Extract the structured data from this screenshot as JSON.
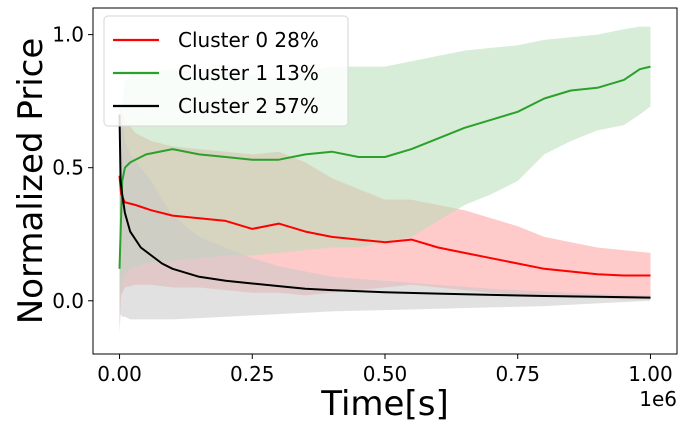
{
  "chart_data": {
    "type": "line",
    "xlabel": "Time[s]",
    "ylabel": "Normalized Price",
    "x_multiplier_label": "1e6",
    "xlim": [
      -0.05,
      1.05
    ],
    "ylim": [
      -0.2,
      1.1
    ],
    "x_ticks": [
      0.0,
      0.25,
      0.5,
      0.75,
      1.0
    ],
    "x_tick_labels": [
      "0.00",
      "0.25",
      "0.50",
      "0.75",
      "1.00"
    ],
    "y_ticks": [
      0.0,
      0.5,
      1.0
    ],
    "y_tick_labels": [
      "0.0",
      "0.5",
      "1.0"
    ],
    "legend_position": "upper-left",
    "series": [
      {
        "name": "Cluster 0 28%",
        "color": "#ff0000",
        "band_color": "#ff9e9e",
        "x": [
          0.0,
          0.003,
          0.01,
          0.03,
          0.06,
          0.1,
          0.15,
          0.2,
          0.25,
          0.3,
          0.35,
          0.4,
          0.45,
          0.5,
          0.55,
          0.6,
          0.65,
          0.7,
          0.75,
          0.8,
          0.85,
          0.9,
          0.95,
          1.0
        ],
        "mean": [
          0.47,
          0.4,
          0.37,
          0.36,
          0.34,
          0.32,
          0.31,
          0.3,
          0.27,
          0.29,
          0.26,
          0.24,
          0.23,
          0.22,
          0.23,
          0.2,
          0.18,
          0.16,
          0.14,
          0.12,
          0.11,
          0.1,
          0.095,
          0.095
        ],
        "upper": [
          0.75,
          0.72,
          0.68,
          0.63,
          0.6,
          0.58,
          0.57,
          0.56,
          0.55,
          0.56,
          0.52,
          0.46,
          0.42,
          0.38,
          0.38,
          0.36,
          0.34,
          0.31,
          0.28,
          0.24,
          0.22,
          0.2,
          0.19,
          0.18
        ],
        "lower": [
          -0.1,
          0.02,
          0.05,
          0.06,
          0.06,
          0.05,
          0.05,
          0.04,
          0.03,
          0.03,
          0.02,
          0.03,
          0.04,
          0.05,
          0.06,
          0.05,
          0.04,
          0.03,
          0.02,
          0.02,
          0.01,
          0.01,
          0.005,
          0.005
        ]
      },
      {
        "name": "Cluster 1 13%",
        "color": "#2ca02c",
        "band_color": "#b6dfb6",
        "x": [
          0.0,
          0.005,
          0.01,
          0.02,
          0.05,
          0.1,
          0.15,
          0.2,
          0.25,
          0.3,
          0.35,
          0.4,
          0.45,
          0.5,
          0.55,
          0.6,
          0.65,
          0.7,
          0.75,
          0.8,
          0.85,
          0.9,
          0.95,
          0.98,
          1.0
        ],
        "mean": [
          0.12,
          0.45,
          0.5,
          0.52,
          0.55,
          0.57,
          0.55,
          0.54,
          0.53,
          0.53,
          0.55,
          0.56,
          0.54,
          0.54,
          0.57,
          0.61,
          0.65,
          0.68,
          0.71,
          0.76,
          0.79,
          0.8,
          0.83,
          0.87,
          0.88
        ],
        "upper": [
          0.2,
          0.75,
          0.82,
          0.85,
          0.86,
          0.87,
          0.86,
          0.86,
          0.85,
          0.84,
          0.86,
          0.88,
          0.88,
          0.88,
          0.9,
          0.92,
          0.94,
          0.95,
          0.96,
          0.98,
          0.99,
          1.0,
          1.02,
          1.03,
          1.03
        ],
        "lower": [
          0.0,
          0.06,
          0.1,
          0.12,
          0.14,
          0.15,
          0.16,
          0.17,
          0.17,
          0.18,
          0.19,
          0.2,
          0.2,
          0.22,
          0.24,
          0.3,
          0.36,
          0.4,
          0.45,
          0.55,
          0.6,
          0.64,
          0.66,
          0.7,
          0.73
        ]
      },
      {
        "name": "Cluster 2 57%",
        "color": "#000000",
        "band_color": "#c9c9c9",
        "x": [
          0.0,
          0.002,
          0.005,
          0.01,
          0.02,
          0.04,
          0.06,
          0.08,
          0.1,
          0.15,
          0.2,
          0.25,
          0.3,
          0.35,
          0.4,
          0.5,
          0.6,
          0.7,
          0.8,
          0.9,
          1.0
        ],
        "mean": [
          0.7,
          0.45,
          0.4,
          0.33,
          0.26,
          0.2,
          0.17,
          0.14,
          0.12,
          0.09,
          0.075,
          0.065,
          0.055,
          0.045,
          0.04,
          0.032,
          0.027,
          0.022,
          0.018,
          0.015,
          0.012
        ],
        "upper": [
          0.75,
          0.72,
          0.68,
          0.6,
          0.55,
          0.5,
          0.45,
          0.38,
          0.32,
          0.24,
          0.2,
          0.16,
          0.13,
          0.11,
          0.09,
          0.075,
          0.06,
          0.045,
          0.035,
          0.025,
          0.02
        ],
        "lower": [
          -0.12,
          -0.05,
          -0.06,
          -0.06,
          -0.07,
          -0.07,
          -0.07,
          -0.07,
          -0.07,
          -0.065,
          -0.06,
          -0.055,
          -0.05,
          -0.045,
          -0.04,
          -0.035,
          -0.03,
          -0.025,
          -0.02,
          -0.01,
          0.0
        ]
      }
    ]
  }
}
